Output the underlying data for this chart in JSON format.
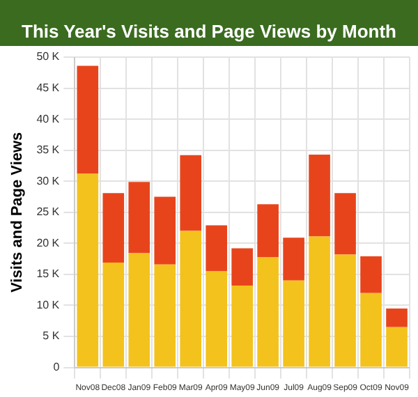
{
  "chart_data": {
    "type": "bar",
    "title": "This Year's Visits and Page Views by Month",
    "ylabel": "Visits and Page Views",
    "categories": [
      "Nov08",
      "Dec08",
      "Jan09",
      "Feb09",
      "Mar09",
      "Apr09",
      "May09",
      "Jun09",
      "Jul09",
      "Aug09",
      "Sep09",
      "Oct09",
      "Nov09"
    ],
    "series": [
      {
        "color": "#f4c21c",
        "values": [
          31.2,
          16.9,
          18.4,
          16.6,
          22.0,
          15.5,
          13.2,
          17.8,
          14.0,
          21.1,
          18.2,
          12.0,
          6.5
        ]
      },
      {
        "color": "#e8441c",
        "values": [
          17.4,
          11.2,
          11.5,
          10.9,
          12.2,
          7.4,
          6.0,
          8.5,
          6.9,
          13.2,
          9.9,
          5.9,
          3.0
        ]
      }
    ],
    "stacked": true,
    "ylim": [
      0,
      50
    ],
    "yticks": [
      0,
      {
        "value": 5,
        "label": "5 K"
      },
      {
        "value": 10,
        "label": "10 K"
      },
      {
        "value": 15,
        "label": "15 K"
      },
      {
        "value": 20,
        "label": "20 K"
      },
      {
        "value": 25,
        "label": "25 K"
      },
      {
        "value": 30,
        "label": "30 K"
      },
      {
        "value": 35,
        "label": "35 K"
      },
      {
        "value": 40,
        "label": "40 K"
      },
      {
        "value": 45,
        "label": "45 K"
      },
      {
        "value": 50,
        "label": "50 K"
      }
    ],
    "grid": true
  }
}
